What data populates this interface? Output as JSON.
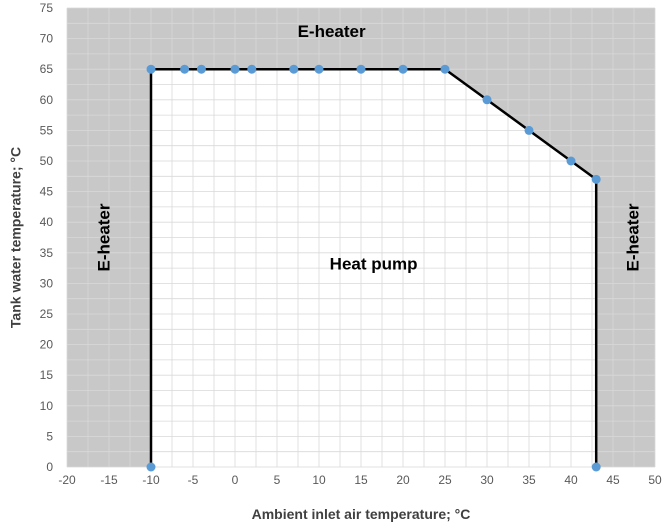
{
  "chart_data": {
    "type": "scatter",
    "title": "",
    "xlabel": "Ambient inlet air temperature; °C",
    "ylabel": "Tank water temperature; °C",
    "xlim": [
      -20,
      50
    ],
    "ylim": [
      0,
      75
    ],
    "x_ticks": [
      -20,
      -15,
      -10,
      -5,
      0,
      5,
      10,
      15,
      20,
      25,
      30,
      35,
      40,
      45,
      50
    ],
    "y_ticks": [
      0,
      5,
      10,
      15,
      20,
      25,
      30,
      35,
      40,
      45,
      50,
      55,
      60,
      65,
      70,
      75
    ],
    "grid": true,
    "series": [
      {
        "points": [
          [
            -10,
            0
          ],
          [
            -10,
            65
          ],
          [
            -6,
            65
          ],
          [
            -4,
            65
          ],
          [
            0,
            65
          ],
          [
            2,
            65
          ],
          [
            7,
            65
          ],
          [
            10,
            65
          ],
          [
            15,
            65
          ],
          [
            20,
            65
          ],
          [
            25,
            65
          ],
          [
            30,
            60
          ],
          [
            35,
            55
          ],
          [
            40,
            50
          ],
          [
            43,
            47
          ],
          [
            43,
            0
          ]
        ]
      }
    ],
    "regions": {
      "outside": "E-heater",
      "inside": "Heat pump"
    },
    "annotations": [
      {
        "text": "E-heater",
        "x": 11.5,
        "y": 71,
        "rotation": 0
      },
      {
        "text": "E-heater",
        "x": -15.5,
        "y": 37.5,
        "rotation": -90
      },
      {
        "text": "E-heater",
        "x": 47.5,
        "y": 37.5,
        "rotation": -90
      },
      {
        "text": "Heat pump",
        "x": 16.5,
        "y": 33,
        "rotation": 0
      }
    ],
    "colors": {
      "outside_fill": "#c8c8c8",
      "inside_fill": "#ffffff",
      "grid": "#d9d9d9",
      "line": "#000000",
      "marker": "#5b9bd5"
    }
  }
}
